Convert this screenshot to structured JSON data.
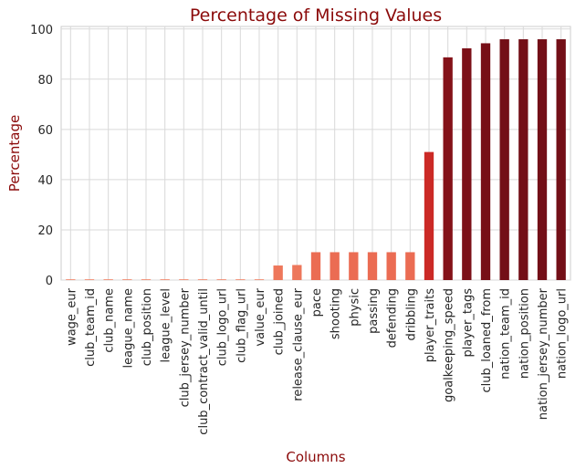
{
  "chart_data": {
    "type": "bar",
    "title": "Percentage of Missing Values",
    "xlabel": "Columns",
    "ylabel": "Percentage",
    "ylim": [
      0,
      101
    ],
    "yticks": [
      0,
      20,
      40,
      60,
      80,
      100
    ],
    "grid": true,
    "categories": [
      "wage_eur",
      "club_team_id",
      "club_name",
      "league_name",
      "club_position",
      "league_level",
      "club_jersey_number",
      "club_contract_valid_until",
      "club_logo_url",
      "club_flag_url",
      "value_eur",
      "club_joined",
      "release_clause_eur",
      "pace",
      "shooting",
      "physic",
      "passing",
      "defending",
      "dribbling",
      "player_traits",
      "goalkeeping_speed",
      "player_tags",
      "club_loaned_from",
      "nation_team_id",
      "nation_position",
      "nation_jersey_number",
      "nation_logo_url"
    ],
    "values": [
      0.3,
      0.3,
      0.3,
      0.3,
      0.3,
      0.3,
      0.3,
      0.3,
      0.3,
      0.3,
      0.3,
      5.8,
      6.0,
      11.1,
      11.1,
      11.1,
      11.1,
      11.1,
      11.1,
      51.0,
      88.7,
      92.3,
      94.3,
      95.9,
      95.9,
      95.9,
      95.9
    ],
    "color_scale": [
      "#f08465",
      "#e23b2e",
      "#b71b1e",
      "#6a0d16"
    ]
  }
}
